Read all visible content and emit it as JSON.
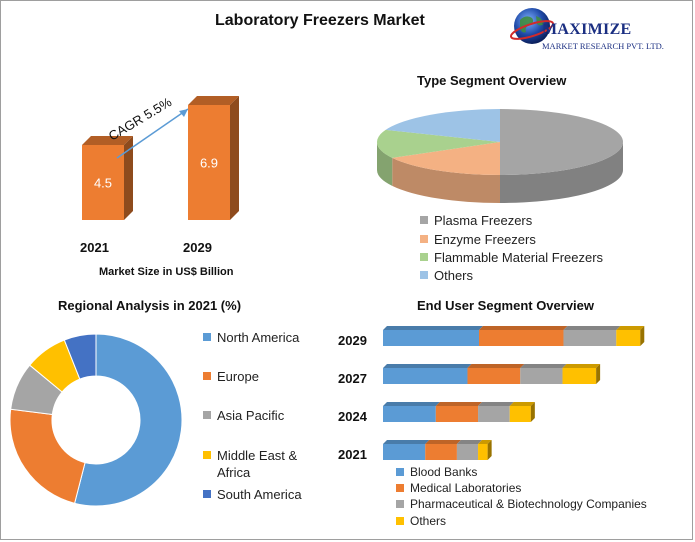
{
  "header": {
    "title": "Laboratory Freezers Market",
    "logo": {
      "line1": "MAXIMIZE",
      "line2": "MARKET RESEARCH PVT. LTD."
    }
  },
  "colors": {
    "orange": "#ED7D31",
    "blue": "#5B9BD5",
    "grey": "#A5A5A5",
    "yellow": "#FFC000",
    "darkblue": "#4472C4",
    "peach": "#F4B183",
    "green": "#A9D18E"
  },
  "chart_data": [
    {
      "type": "bar",
      "title": "",
      "categories": [
        "2021",
        "2029"
      ],
      "values": [
        4.5,
        6.9
      ],
      "value_labels": [
        "4.5",
        "6.9"
      ],
      "annotation": "CAGR 5.5%",
      "xlabel": "Market Size in US$ Billion",
      "color": "#ED7D31"
    },
    {
      "type": "pie",
      "title": "Type Segment Overview",
      "labels": [
        "Plasma Freezers",
        "Enzyme Freezers",
        "Flammable Material Freezers",
        "Others"
      ],
      "values": [
        50,
        17,
        14,
        19
      ],
      "colors": [
        "#A5A5A5",
        "#F4B183",
        "#A9D18E",
        "#9DC3E6"
      ],
      "style": "3d"
    },
    {
      "type": "pie",
      "title": "Regional Analysis in 2021 (%)",
      "labels": [
        "North America",
        "Europe",
        "Asia Pacific",
        "Middle East & Africa",
        "South America"
      ],
      "values": [
        54,
        23,
        9,
        8,
        6
      ],
      "colors": [
        "#5B9BD5",
        "#ED7D31",
        "#A5A5A5",
        "#FFC000",
        "#4472C4"
      ],
      "style": "donut"
    },
    {
      "type": "bar",
      "orientation": "horizontal",
      "stacked": true,
      "title": "End User Segment Overview",
      "categories": [
        "2029",
        "2027",
        "2024",
        "2021"
      ],
      "series": [
        {
          "name": "Blood Banks",
          "values": [
            100,
            88,
            55,
            44
          ],
          "color": "#5B9BD5"
        },
        {
          "name": "Medical Laboratories",
          "values": [
            88,
            55,
            44,
            33
          ],
          "color": "#ED7D31"
        },
        {
          "name": "Pharmaceutical & Biotechnology Companies",
          "values": [
            55,
            44,
            33,
            22
          ],
          "color": "#A5A5A5"
        },
        {
          "name": "Others",
          "values": [
            25,
            35,
            22,
            10
          ],
          "color": "#FFC000"
        }
      ]
    }
  ]
}
